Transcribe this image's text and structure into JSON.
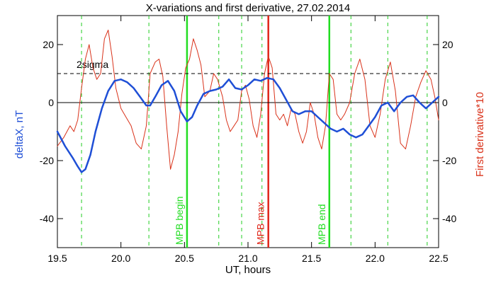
{
  "chart_data": {
    "type": "line",
    "title": "X-variations and first derivative, 27.02.2014",
    "xlabel": "UT, hours",
    "ylabel_left": "deltaX, nT",
    "ylabel_right": "First derivative*10",
    "xlim": [
      19.5,
      22.5
    ],
    "ylim": [
      -50,
      30
    ],
    "x_ticks": [
      19.5,
      20.0,
      20.5,
      21.0,
      21.5,
      22.0,
      22.5
    ],
    "x_tick_labels": [
      "19.5",
      "20.0",
      "20.5",
      "21.0",
      "21.5",
      "22.0",
      "22.5"
    ],
    "y_ticks": [
      -40,
      -20,
      0,
      20
    ],
    "y_tick_labels": [
      "-40",
      "-20",
      "0",
      "20"
    ],
    "grid": false,
    "colors": {
      "deltaX": "#1f4fd6",
      "derivative": "#d9321a",
      "mpb_boundary": "#22dd22",
      "mpb_max": "#e0261a",
      "dashed_green": "#22cc22",
      "reference": "#000000"
    },
    "series": [
      {
        "name": "deltaX, nT",
        "x": [
          19.5,
          19.56,
          19.62,
          19.66,
          19.69,
          19.72,
          19.76,
          19.8,
          19.85,
          19.9,
          19.95,
          20.0,
          20.05,
          20.1,
          20.15,
          20.2,
          20.23,
          20.27,
          20.32,
          20.37,
          20.42,
          20.47,
          20.52,
          20.56,
          20.6,
          20.65,
          20.7,
          20.75,
          20.8,
          20.85,
          20.9,
          20.95,
          21.0,
          21.05,
          21.1,
          21.15,
          21.2,
          21.25,
          21.3,
          21.35,
          21.4,
          21.45,
          21.5,
          21.55,
          21.6,
          21.65,
          21.7,
          21.75,
          21.8,
          21.85,
          21.9,
          21.95,
          22.0,
          22.05,
          22.1,
          22.15,
          22.2,
          22.25,
          22.3,
          22.35,
          22.4,
          22.45,
          22.5
        ],
        "y": [
          -10,
          -15,
          -19,
          -22,
          -24,
          -23,
          -18,
          -10,
          -2,
          4,
          7.5,
          8,
          7,
          5,
          2,
          -1,
          -1,
          2,
          6,
          7.5,
          4,
          -3,
          -6.5,
          -5,
          -1,
          3,
          4,
          4.5,
          5.5,
          8,
          5,
          4.5,
          6,
          8,
          7.5,
          8.5,
          8,
          5,
          1,
          -3,
          -4,
          -3,
          -3,
          -5,
          -7,
          -9,
          -10,
          -9,
          -11,
          -12,
          -11,
          -8,
          -5,
          -1,
          0,
          -3,
          0,
          2,
          2.5,
          0,
          -2,
          0,
          2
        ]
      },
      {
        "name": "First derivative*10",
        "x": [
          19.5,
          19.55,
          19.6,
          19.63,
          19.66,
          19.69,
          19.72,
          19.75,
          19.78,
          19.81,
          19.84,
          19.87,
          19.9,
          19.93,
          19.96,
          20.0,
          20.04,
          20.08,
          20.12,
          20.16,
          20.2,
          20.23,
          20.27,
          20.3,
          20.33,
          20.36,
          20.39,
          20.42,
          20.45,
          20.48,
          20.51,
          20.54,
          20.57,
          20.6,
          20.63,
          20.66,
          20.7,
          20.73,
          20.76,
          20.8,
          20.83,
          20.86,
          20.89,
          20.92,
          20.95,
          20.98,
          21.01,
          21.04,
          21.07,
          21.1,
          21.13,
          21.16,
          21.19,
          21.22,
          21.25,
          21.28,
          21.31,
          21.34,
          21.37,
          21.4,
          21.43,
          21.46,
          21.49,
          21.52,
          21.55,
          21.58,
          21.61,
          21.64,
          21.67,
          21.7,
          21.73,
          21.76,
          21.8,
          21.84,
          21.88,
          21.92,
          21.96,
          22.0,
          22.04,
          22.08,
          22.12,
          22.16,
          22.2,
          22.24,
          22.28,
          22.32,
          22.36,
          22.4,
          22.44,
          22.47,
          22.5
        ],
        "y": [
          -15,
          -12,
          -8,
          -10,
          -6,
          5,
          15,
          20,
          12,
          8,
          10,
          22,
          25,
          16,
          5,
          -2,
          -5,
          -8,
          -14,
          -16,
          -8,
          10,
          14,
          15,
          9,
          -8,
          -23,
          -18,
          -10,
          3,
          12,
          15,
          22,
          18,
          13,
          2,
          4,
          10,
          8,
          2,
          -6,
          -10,
          -8,
          -6,
          4,
          6,
          1,
          -8,
          -12,
          -4,
          10,
          16,
          12,
          -4,
          -6,
          -4,
          -8,
          -2,
          -4,
          -10,
          -14,
          -10,
          0,
          -4,
          -12,
          -16,
          -8,
          10,
          8,
          -4,
          -6,
          -4,
          0,
          10,
          15,
          8,
          -8,
          -12,
          -4,
          8,
          14,
          4,
          -14,
          -16,
          -8,
          2,
          7,
          11,
          8,
          2,
          -6
        ]
      }
    ],
    "reference_lines": [
      {
        "name": "zero",
        "y": 0,
        "style": "solid"
      },
      {
        "name": "2sigma",
        "y": 10,
        "style": "dashed",
        "label": "2sigma"
      }
    ],
    "vertical_markers": [
      {
        "x": 20.52,
        "label": "MPB begin",
        "kind": "boundary"
      },
      {
        "x": 21.16,
        "label": "MPB max",
        "kind": "max"
      },
      {
        "x": 21.64,
        "label": "MPB end",
        "kind": "boundary"
      }
    ],
    "dashed_verticals": [
      19.69,
      20.22,
      20.77,
      20.95,
      21.11,
      21.81,
      22.1,
      22.41
    ]
  }
}
